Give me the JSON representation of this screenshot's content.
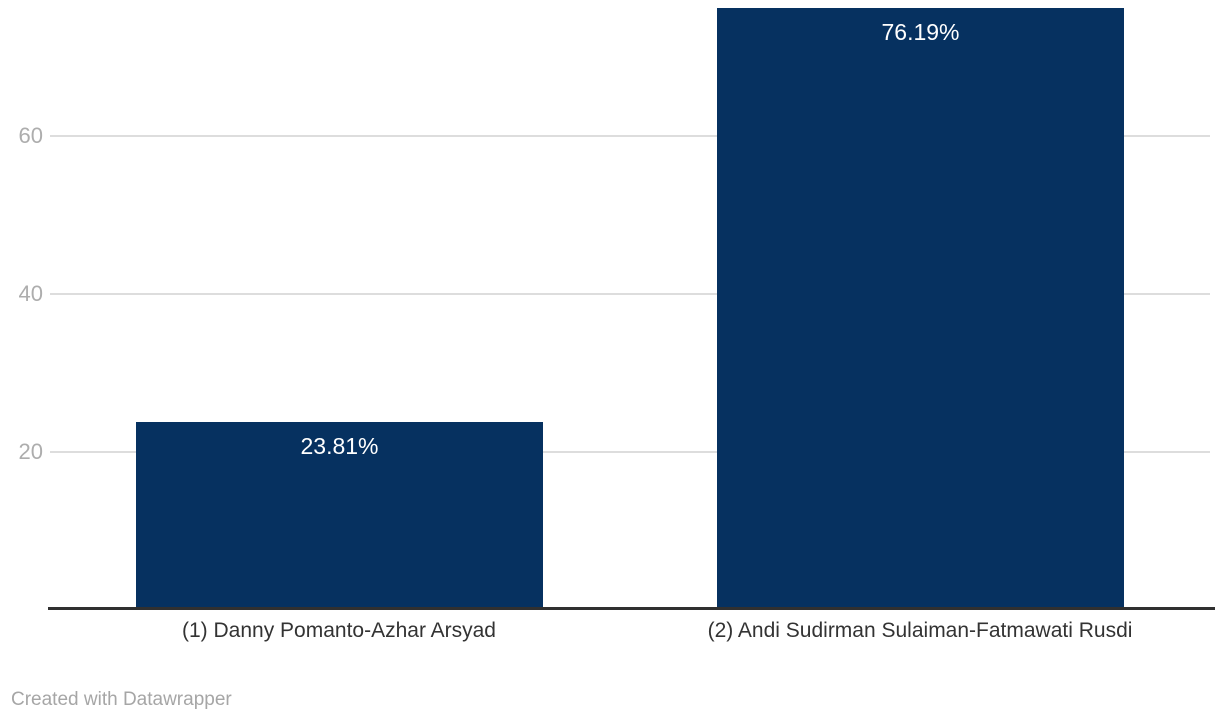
{
  "chart_data": {
    "type": "bar",
    "categories": [
      "(1) Danny Pomanto-Azhar Arsyad",
      "(2) Andi Sudirman Sulaiman-Fatmawati Rusdi"
    ],
    "values": [
      23.81,
      76.19
    ],
    "value_labels": [
      "23.81%",
      "76.19%"
    ],
    "title": "",
    "xlabel": "",
    "ylabel": "",
    "yticks": [
      20,
      40,
      60
    ],
    "ytick_labels": [
      "20",
      "40",
      "60"
    ],
    "ylim": [
      0,
      76.19
    ],
    "grid": true,
    "legend": "none"
  },
  "colors": {
    "bar": "#063160",
    "gridline": "#dddddd",
    "axis_line": "#303030",
    "tick_label": "#adadad",
    "category_label": "#333333",
    "value_label": "#ffffff",
    "credit": "#a6a6a6",
    "background": "#ffffff"
  },
  "footer": {
    "credit": "Created with Datawrapper"
  }
}
